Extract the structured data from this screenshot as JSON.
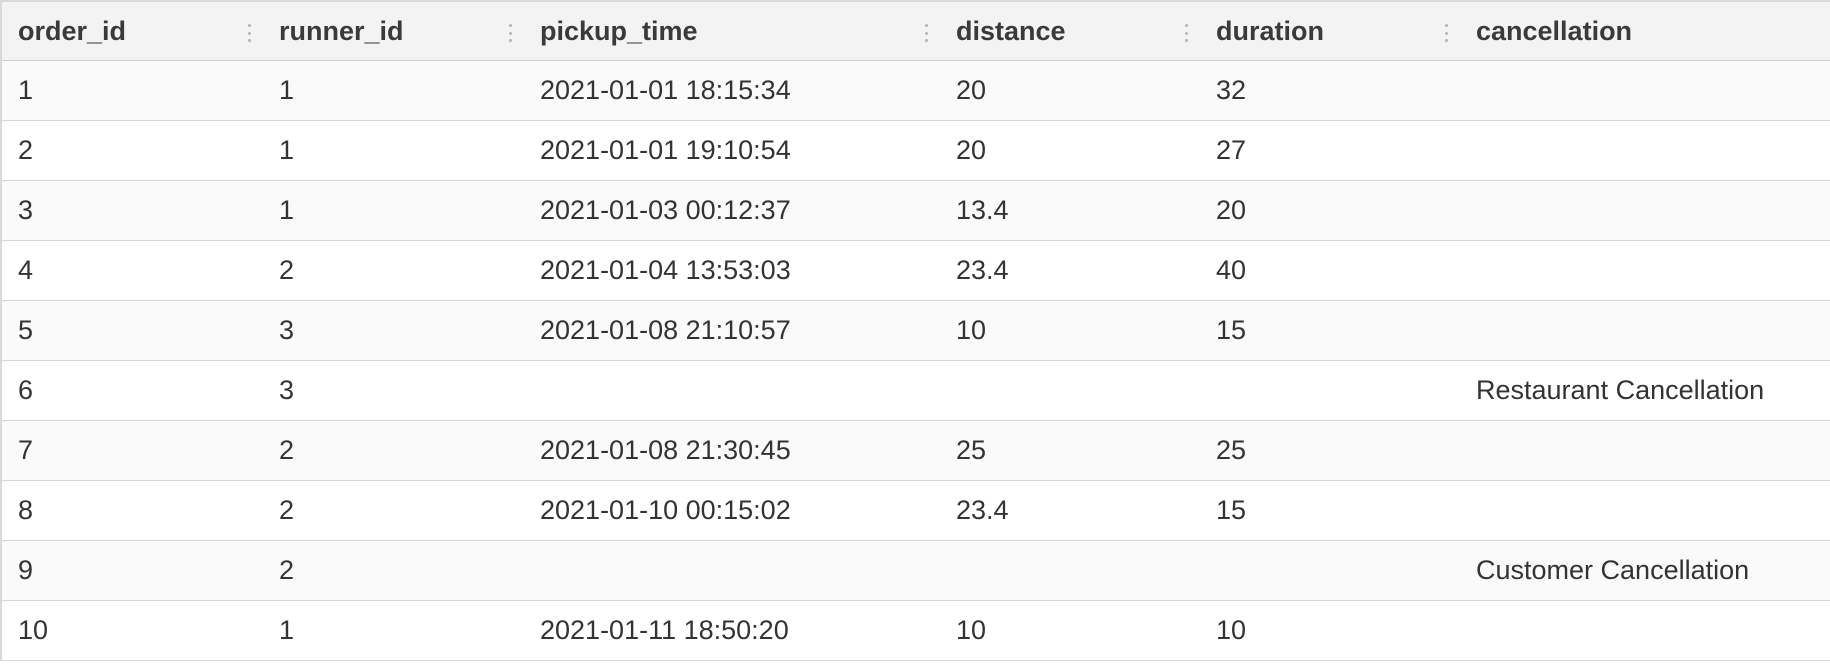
{
  "columns": [
    "order_id",
    "runner_id",
    "pickup_time",
    "distance",
    "duration",
    "cancellation"
  ],
  "rows": [
    [
      "1",
      "1",
      "2021-01-01 18:15:34",
      "20",
      "32",
      ""
    ],
    [
      "2",
      "1",
      "2021-01-01 19:10:54",
      "20",
      "27",
      ""
    ],
    [
      "3",
      "1",
      "2021-01-03 00:12:37",
      "13.4",
      "20",
      ""
    ],
    [
      "4",
      "2",
      "2021-01-04 13:53:03",
      "23.4",
      "40",
      ""
    ],
    [
      "5",
      "3",
      "2021-01-08 21:10:57",
      "10",
      "15",
      ""
    ],
    [
      "6",
      "3",
      "",
      "",
      "",
      "Restaurant Cancellation"
    ],
    [
      "7",
      "2",
      "2021-01-08 21:30:45",
      "25",
      "25",
      ""
    ],
    [
      "8",
      "2",
      "2021-01-10 00:15:02",
      "23.4",
      "15",
      ""
    ],
    [
      "9",
      "2",
      "",
      "",
      "",
      "Customer Cancellation"
    ],
    [
      "10",
      "1",
      "2021-01-11 18:50:20",
      "10",
      "10",
      ""
    ]
  ]
}
